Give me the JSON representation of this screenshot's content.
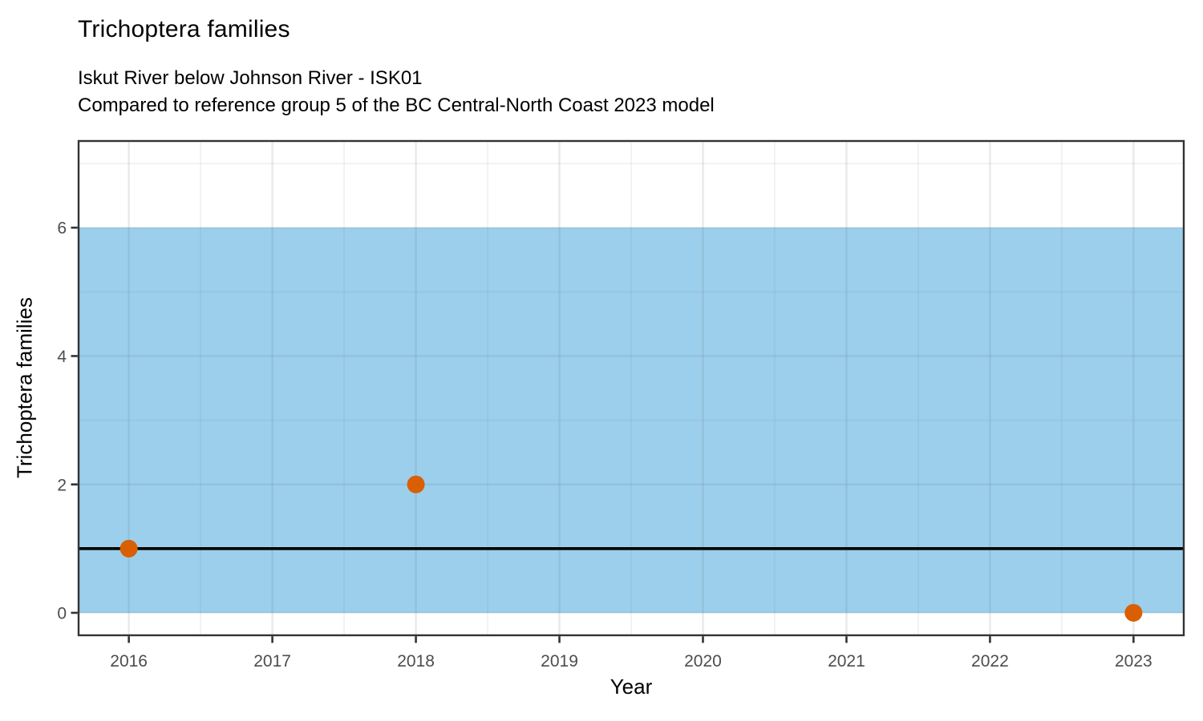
{
  "header": {
    "title": "Trichoptera families",
    "subtitle_line1": "Iskut River below Johnson River - ISK01",
    "subtitle_line2": "Compared to reference group 5 of the BC Central-North Coast 2023 model"
  },
  "chart_data": {
    "type": "scatter",
    "title": "Trichoptera families",
    "subtitle": "Iskut River below Johnson River - ISK01\nCompared to reference group 5 of the BC Central-North Coast 2023 model",
    "xlabel": "Year",
    "ylabel": "Trichoptera families",
    "points": [
      {
        "x": 2016,
        "y": 1
      },
      {
        "x": 2018,
        "y": 2
      },
      {
        "x": 2023,
        "y": 0
      }
    ],
    "reference_band": {
      "ymin": 0,
      "ymax": 6
    },
    "reference_line": {
      "y": 1
    },
    "x_ticks": [
      2016,
      2017,
      2018,
      2019,
      2020,
      2021,
      2022,
      2023
    ],
    "x_minor_ticks": [
      2016.5,
      2017.5,
      2018.5,
      2019.5,
      2020.5,
      2021.5,
      2022.5
    ],
    "y_ticks": [
      0,
      2,
      4,
      6
    ],
    "y_minor_ticks": [
      1,
      3,
      5,
      7
    ],
    "xlim": [
      2015.65,
      2023.35
    ],
    "ylim": [
      -0.35,
      7.35
    ],
    "grid": true,
    "legend_position": "none",
    "colors": {
      "band": "#9bcfeb",
      "point": "#d95f02",
      "reference_line": "#000000",
      "grid_major": "rgba(105,125,138,0.16)",
      "grid_minor": "rgba(105,125,138,0.10)",
      "axis_text": "#4d4d4d",
      "axis_line": "#333333",
      "panel_background": "#ffffff"
    }
  }
}
